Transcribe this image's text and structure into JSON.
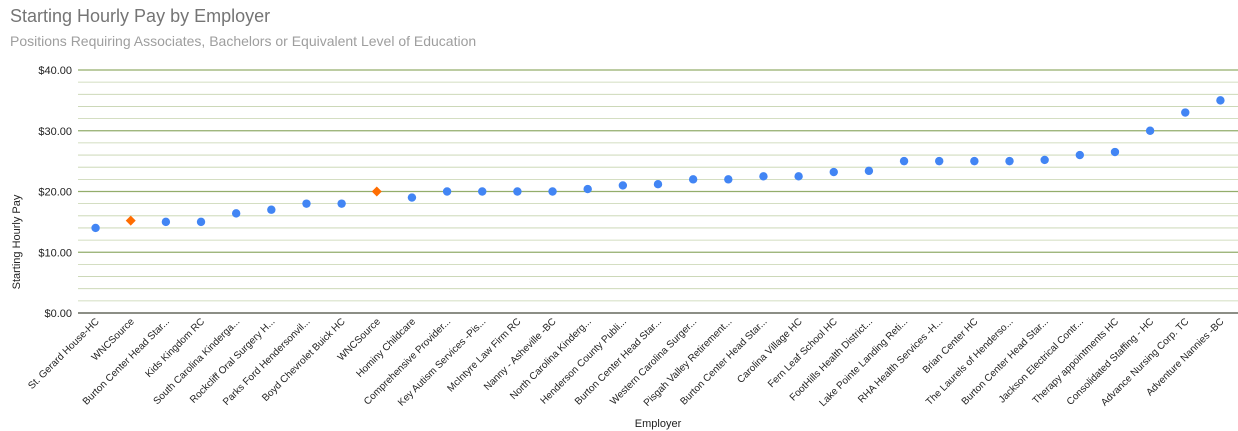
{
  "chart_data": {
    "type": "scatter",
    "title": "Starting Hourly Pay by Employer",
    "subtitle": "Positions Requiring Associates, Bachelors or Equivalent Level of Education",
    "xlabel": "Employer",
    "ylabel": "Starting Hourly Pay",
    "ylim": [
      0,
      40
    ],
    "y_ticks": [
      "$0.00",
      "$10.00",
      "$20.00",
      "$30.00",
      "$40.00"
    ],
    "grid": true,
    "legend": "none",
    "colors": {
      "default": "#4285f4",
      "highlight": "#ff6d01",
      "major_grid": "#93ad6b",
      "minor_grid": "#c5d3ae"
    },
    "categories": [
      "St. Gerard House-HC",
      "WNCSource",
      "Burton Center Head Star...",
      "Kids Kingdom RC",
      "South Carolina Kinderga...",
      "Rockcliff Oral Surgery H...",
      "Parks Ford Hendersonvil...",
      "Boyd Chevrolet Buick HC",
      "WNCSource",
      "Hominy Childcare",
      "Comprehensive Provider...",
      "Key Autism Services -Pis...",
      "McIntyre Law Firm RC",
      "Nanny - Asheville -BC",
      "North Carolina Kinderg...",
      "Henderson County Publi...",
      "Burton Center Head Star...",
      "Western Carolina Surger...",
      "Pisgah Valley Retirement...",
      "Burton Center Head Star...",
      "Carolina Village HC",
      "Fern Leaf School HC",
      "FootHills Health District...",
      "Lake Pointe Landing Reti...",
      "RHA Health Services -H...",
      "Brian Center HC",
      "The Laurels of Henderso...",
      "Burton Center Head Star...",
      "Jackson Electrical Contr...",
      "Therapy appointments HC",
      "Consolidated Staffing - HC",
      "Advance Nursing Corp. TC",
      "Adventure Nannies -BC"
    ],
    "values": [
      14,
      15.2,
      15,
      15,
      16.4,
      17,
      18,
      18,
      20,
      19,
      20,
      20,
      20,
      20,
      20.4,
      21,
      21.2,
      22,
      22,
      22.5,
      22.5,
      23.2,
      23.4,
      25,
      25,
      25,
      25,
      25.2,
      26,
      26.5,
      30,
      33,
      35
    ],
    "highlight": [
      false,
      true,
      false,
      false,
      false,
      false,
      false,
      false,
      true,
      false,
      false,
      false,
      false,
      false,
      false,
      false,
      false,
      false,
      false,
      false,
      false,
      false,
      false,
      false,
      false,
      false,
      false,
      false,
      false,
      false,
      false,
      false,
      false
    ]
  }
}
